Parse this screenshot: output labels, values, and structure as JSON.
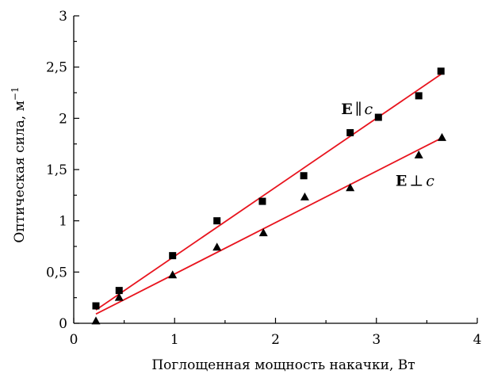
{
  "chart_data": {
    "type": "scatter",
    "xlabel": "Поглощенная мощность накачки, Вт",
    "ylabel": "Оптическая сила, м",
    "ylabel_superscript": "−1",
    "xlim": [
      0,
      4
    ],
    "ylim": [
      0,
      3
    ],
    "xticks": [
      0,
      1,
      2,
      3,
      4
    ],
    "xtick_labels": [
      "0",
      "1",
      "2",
      "3",
      "4"
    ],
    "yticks": [
      0,
      0.5,
      1,
      1.5,
      2,
      2.5,
      3
    ],
    "ytick_labels": [
      "0",
      "0,5",
      "1",
      "1,5",
      "2",
      "2,5",
      "3"
    ],
    "grid": false,
    "fit_color": "#e8141e",
    "marker_color": "#000000",
    "series": [
      {
        "marker": "square",
        "x": [
          0.22,
          0.45,
          0.98,
          1.42,
          1.87,
          2.28,
          2.74,
          3.02,
          3.42,
          3.64
        ],
        "y": [
          0.17,
          0.32,
          0.66,
          1.0,
          1.19,
          1.44,
          1.86,
          2.01,
          2.22,
          2.46
        ],
        "fit": {
          "x": [
            0.22,
            3.64
          ],
          "y": [
            0.13,
            2.43
          ]
        },
        "annotation": {
          "bold": "E",
          "op": "∥",
          "italic": "c",
          "at": [
            2.65,
            2.04
          ]
        }
      },
      {
        "marker": "triangle",
        "x": [
          0.22,
          0.45,
          0.98,
          1.42,
          1.88,
          2.29,
          2.74,
          3.42,
          3.65
        ],
        "y": [
          0.02,
          0.25,
          0.47,
          0.74,
          0.88,
          1.23,
          1.32,
          1.64,
          1.81
        ],
        "fit": {
          "x": [
            0.22,
            3.65
          ],
          "y": [
            0.09,
            1.81
          ]
        },
        "annotation": {
          "bold": "E",
          "op": "⊥",
          "italic": "c",
          "at": [
            3.19,
            1.34
          ]
        }
      }
    ]
  }
}
